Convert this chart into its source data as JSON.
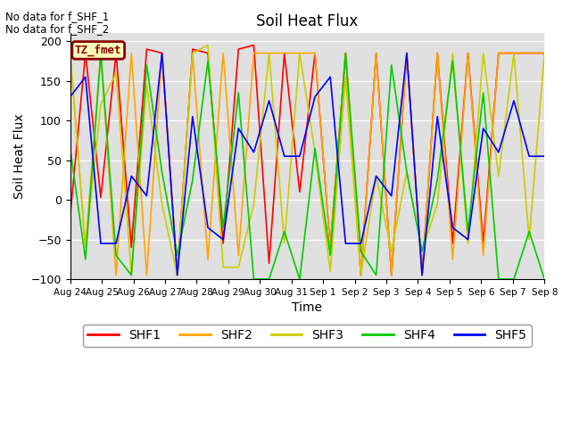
{
  "title": "Soil Heat Flux",
  "xlabel": "Time",
  "ylabel": "Soil Heat Flux",
  "ylim": [
    -100,
    210
  ],
  "annotation1": "No data for f_SHF_1",
  "annotation2": "No data for f_SHF_2",
  "tz_label": "TZ_fmet",
  "background_color": "#e0e0e0",
  "series_colors": {
    "SHF1": "#ff0000",
    "SHF2": "#ffa500",
    "SHF3": "#cccc00",
    "SHF4": "#00cc00",
    "SHF5": "#0000ff"
  },
  "x_ticks_labels": [
    "Aug 24",
    "Aug 25",
    "Aug 26",
    "Aug 27",
    "Aug 28",
    "Aug 29",
    "Aug 30",
    "Aug 31",
    "Sep 1",
    "Sep 2",
    "Sep 3",
    "Sep 4",
    "Sep 5",
    "Sep 6",
    "Sep 7",
    "Sep 8"
  ],
  "SHF1": [
    -20,
    185,
    3,
    185,
    -60,
    190,
    185,
    -95,
    190,
    185,
    -55,
    190,
    195,
    -80,
    185,
    10,
    185,
    -60,
    185,
    -95,
    185,
    -95,
    185,
    -95,
    185,
    -55,
    185,
    -55,
    185,
    185,
    185,
    185
  ],
  "SHF2": [
    185,
    -60,
    185,
    -95,
    185,
    -95,
    185,
    -95,
    185,
    -75,
    185,
    -70,
    185,
    185,
    185,
    185,
    185,
    -60,
    185,
    -95,
    185,
    -95,
    185,
    -95,
    185,
    -75,
    185,
    -70,
    185,
    185,
    185,
    185
  ],
  "SHF3": [
    185,
    -60,
    120,
    160,
    -95,
    145,
    -5,
    -95,
    185,
    195,
    -85,
    -85,
    -5,
    185,
    -55,
    185,
    60,
    -90,
    155,
    -95,
    30,
    -65,
    35,
    -65,
    -5,
    185,
    -55,
    185,
    30,
    185,
    -50,
    185
  ],
  "SHF4": [
    65,
    -75,
    185,
    -70,
    -95,
    170,
    35,
    -70,
    25,
    175,
    -35,
    135,
    -100,
    -100,
    -40,
    -100,
    65,
    -70,
    185,
    -65,
    -95,
    170,
    35,
    -65,
    25,
    175,
    -40,
    135,
    -100,
    -100,
    -40,
    -100
  ],
  "SHF5": [
    130,
    155,
    -55,
    -55,
    30,
    5,
    185,
    -95,
    105,
    -35,
    -50,
    90,
    60,
    125,
    55,
    55,
    130,
    155,
    -55,
    -55,
    30,
    5,
    185,
    -95,
    105,
    -35,
    -50,
    90,
    60,
    125,
    55,
    55
  ]
}
